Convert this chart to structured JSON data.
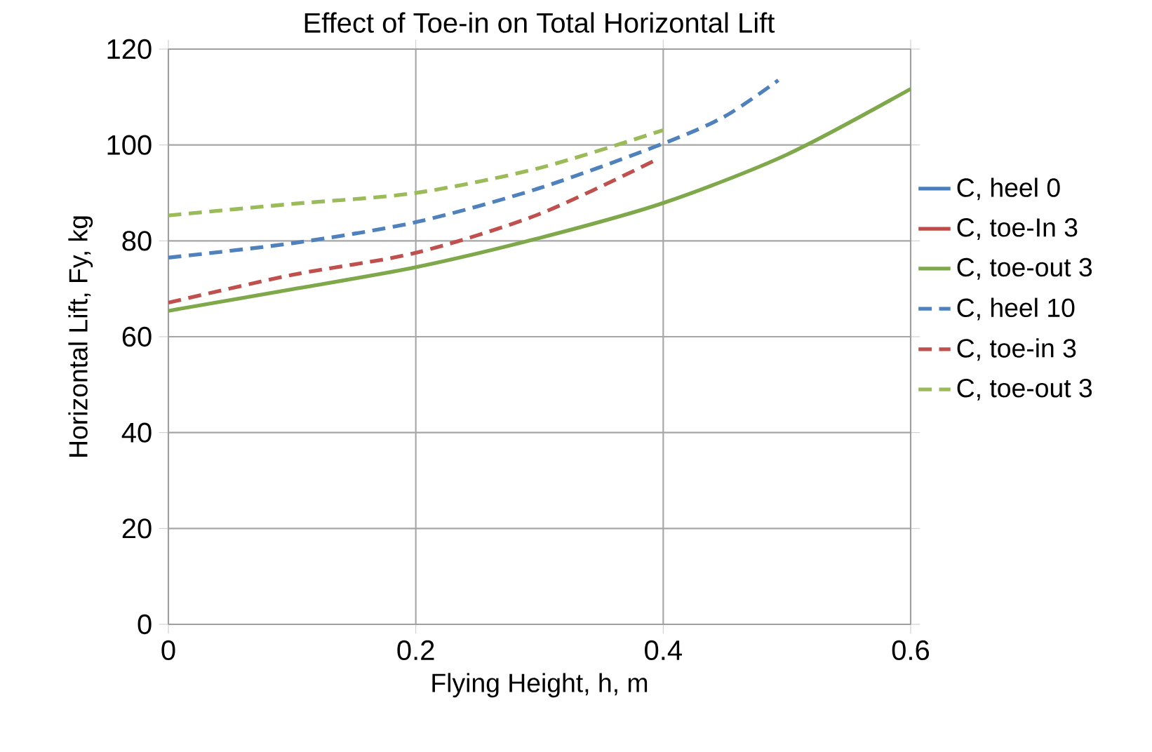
{
  "chart_data": {
    "type": "line",
    "title": "Effect of Toe-in on Total Horizontal Lift",
    "xlabel": "Flying Height, h, m",
    "ylabel": "Horizontal Lift, Fy, kg",
    "xlim": [
      0,
      0.6
    ],
    "ylim": [
      0,
      120
    ],
    "xticks": [
      0,
      0.2,
      0.4,
      0.6
    ],
    "yticks": [
      0,
      20,
      40,
      60,
      80,
      100,
      120
    ],
    "grid": true,
    "legend": "right",
    "series": [
      {
        "name": "C, heel 0",
        "color": "#4a7ebb",
        "line_style": "solid"
      },
      {
        "name": "C, toe-In 3",
        "color": "#be4b48",
        "line_style": "solid"
      },
      {
        "name": "C, toe-out 3",
        "color": "#7ea84a",
        "line_style": "solid",
        "x": [
          0,
          0.1,
          0.2,
          0.3,
          0.4,
          0.5,
          0.6
        ],
        "values": [
          65.4,
          69.9,
          74.5,
          80.6,
          87.9,
          98,
          111.7
        ]
      },
      {
        "name": "C, heel 10",
        "color": "#4f81bd",
        "line_style": "dashed",
        "x": [
          0,
          0.1,
          0.2,
          0.3,
          0.4,
          0.45,
          0.493
        ],
        "values": [
          76.5,
          79.5,
          83.9,
          91,
          100.3,
          106,
          113.5
        ]
      },
      {
        "name": "C, toe-in 3",
        "color": "#c0504d",
        "line_style": "dashed",
        "x": [
          0,
          0.1,
          0.2,
          0.3,
          0.395
        ],
        "values": [
          67.1,
          72.9,
          77.5,
          85.6,
          97
        ]
      },
      {
        "name": "C, toe-out 3",
        "color": "#9bbb59",
        "line_style": "dashed",
        "x": [
          0,
          0.1,
          0.2,
          0.3,
          0.4
        ],
        "values": [
          85.3,
          87.7,
          90,
          95.2,
          103.1
        ]
      }
    ]
  }
}
